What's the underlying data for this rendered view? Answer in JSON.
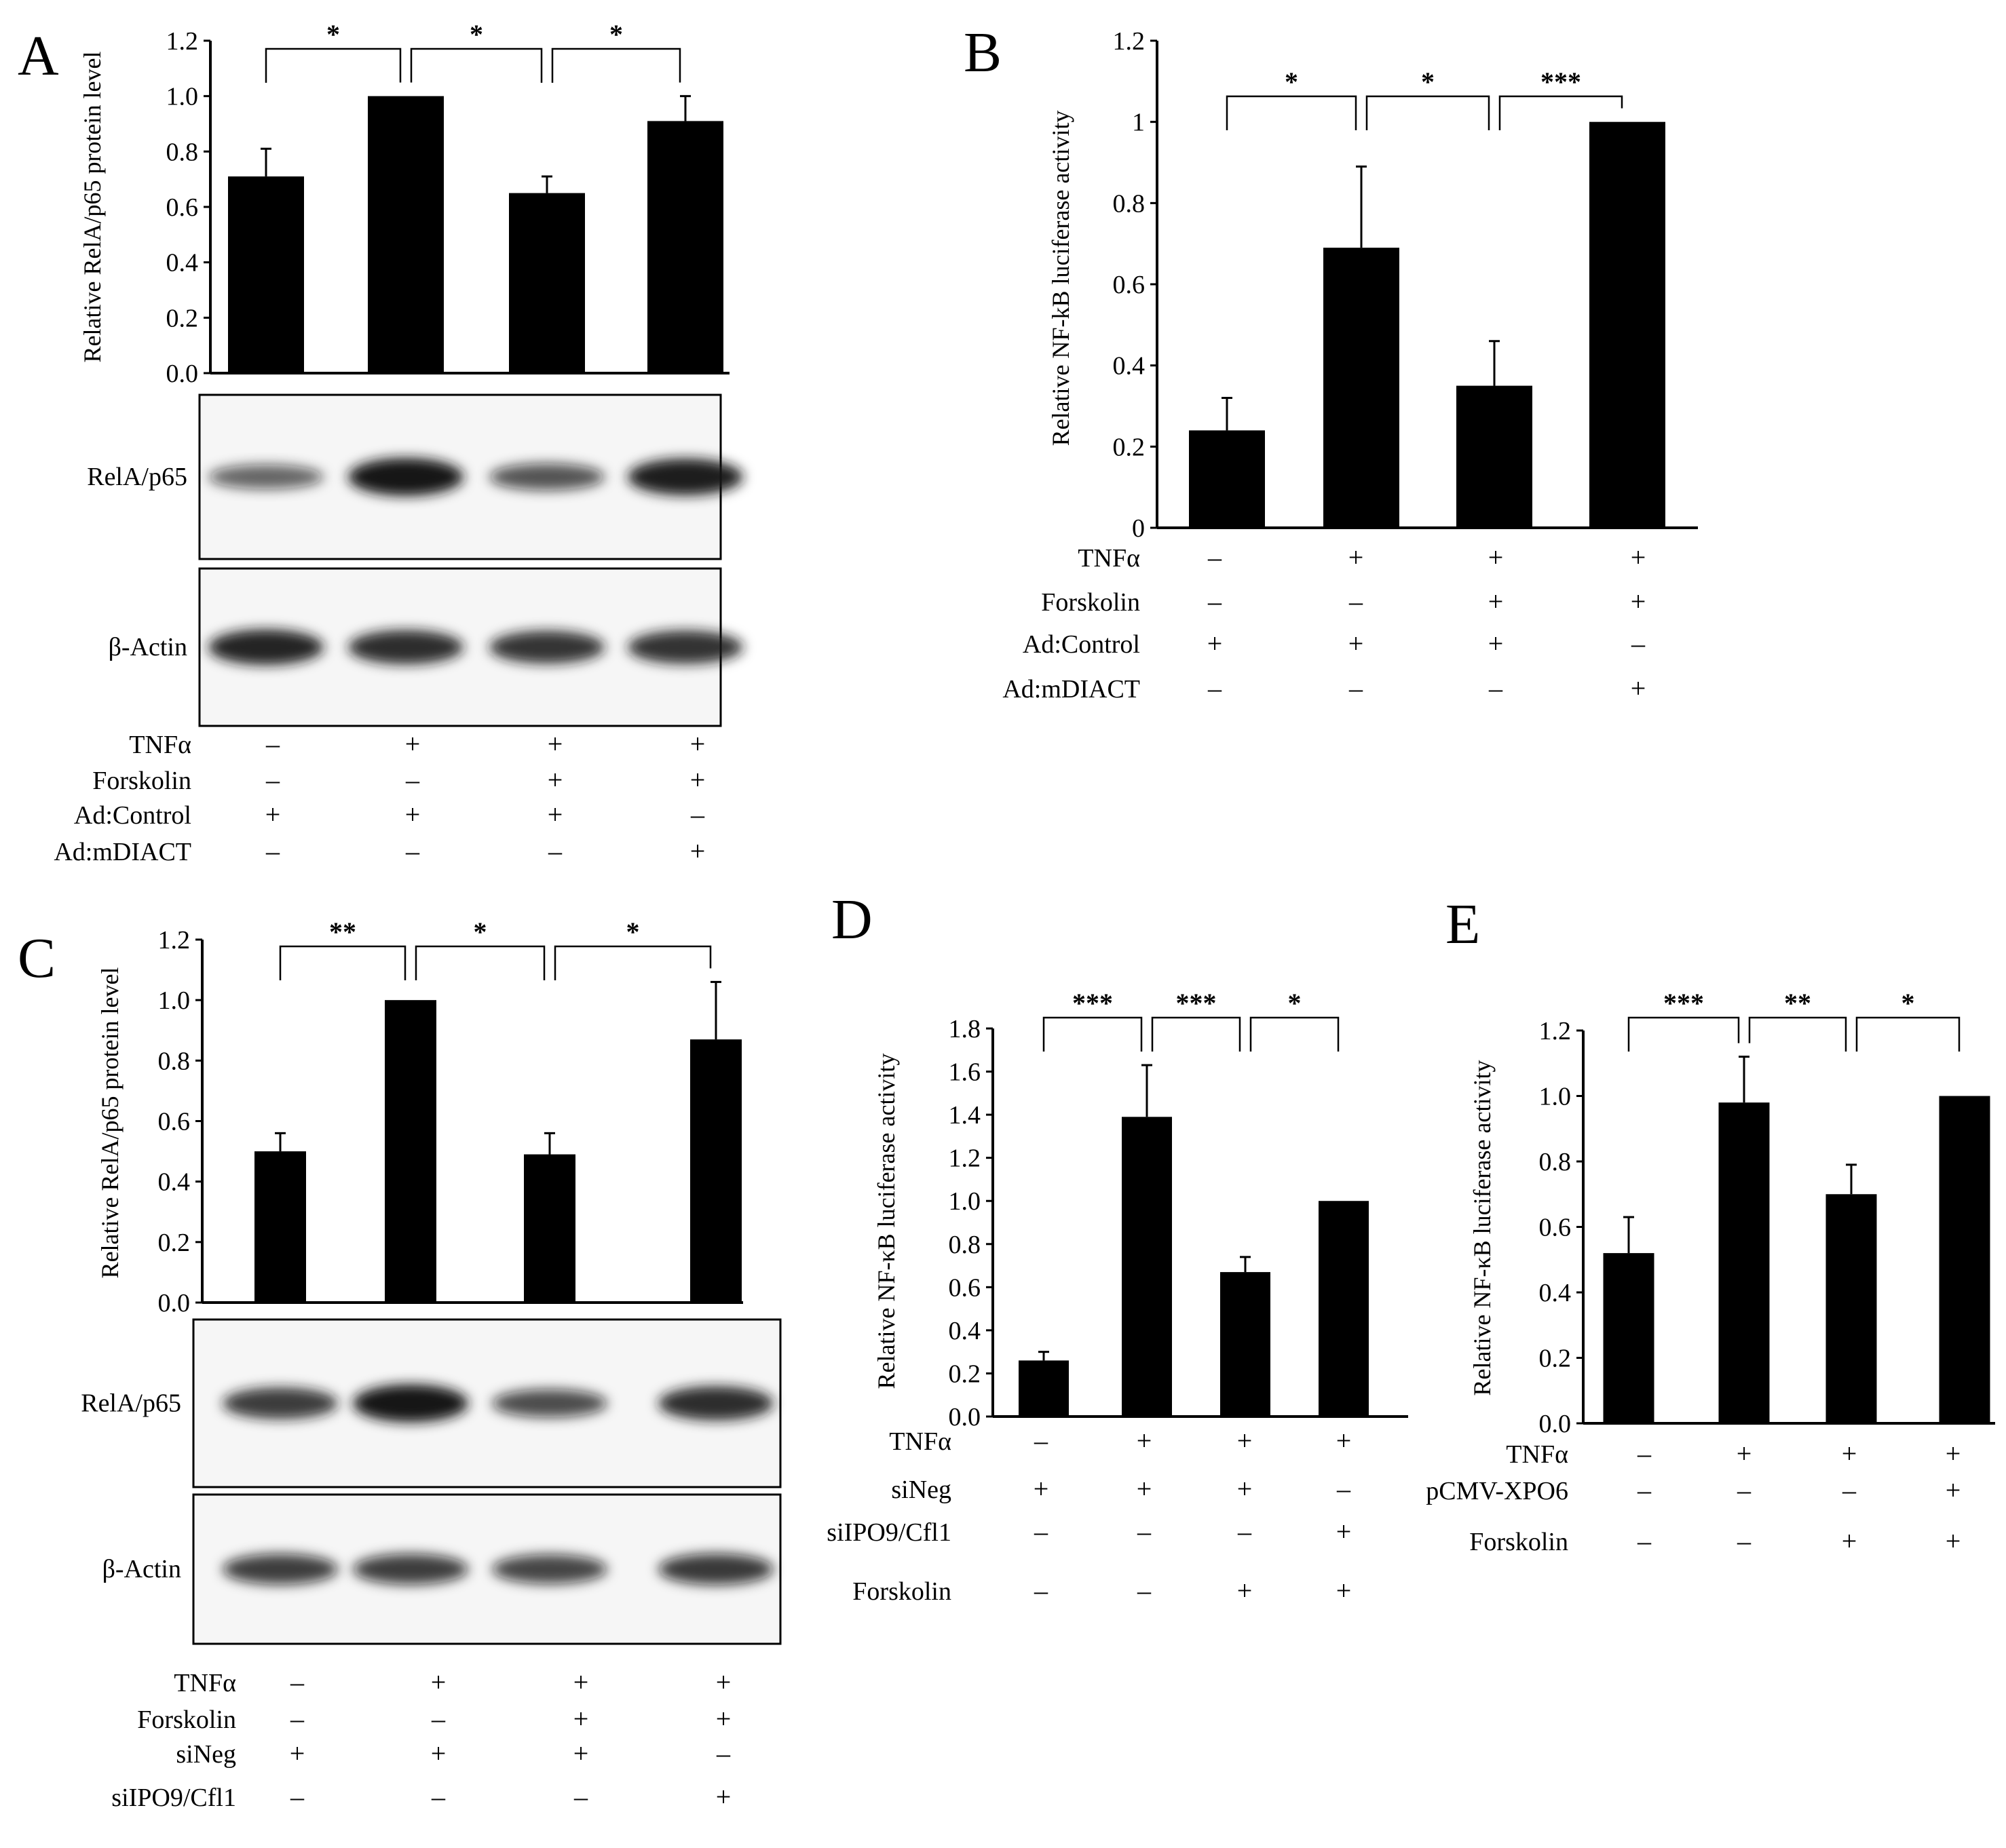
{
  "chart_data": [
    {
      "panel": "A",
      "type": "bar",
      "ylabel": "Relative RelA/p65 protein level",
      "ylim": [
        0,
        1.2
      ],
      "yticks": [
        "0.0",
        "0.2",
        "0.4",
        "0.6",
        "0.8",
        "1.0",
        "1.2"
      ],
      "categories": [
        "1",
        "2",
        "3",
        "4"
      ],
      "values": [
        0.71,
        1.0,
        0.65,
        0.91
      ],
      "errors": [
        0.1,
        0.0,
        0.06,
        0.09
      ],
      "significance": [
        {
          "from": 0,
          "to": 1,
          "label": "*"
        },
        {
          "from": 1,
          "to": 2,
          "label": "*"
        },
        {
          "from": 2,
          "to": 3,
          "label": "*"
        }
      ],
      "blots": [
        {
          "label": "RelA/p65",
          "intensity": [
            0.45,
            1.0,
            0.55,
            0.95
          ]
        },
        {
          "label": "β-Actin",
          "intensity": [
            0.9,
            0.85,
            0.8,
            0.82
          ]
        }
      ],
      "conditions": [
        {
          "label": "TNFα",
          "signs": [
            "–",
            "+",
            "+",
            "+"
          ]
        },
        {
          "label": "Forskolin",
          "signs": [
            "–",
            "–",
            "+",
            "+"
          ]
        },
        {
          "label": "Ad:Control",
          "signs": [
            "+",
            "+",
            "+",
            "–"
          ]
        },
        {
          "label": "Ad:mDIACT",
          "signs": [
            "–",
            "–",
            "–",
            "+"
          ]
        }
      ]
    },
    {
      "panel": "B",
      "type": "bar",
      "ylabel": "Relative NF-kB luciferase activity",
      "ylim": [
        0,
        1.2
      ],
      "yticks": [
        "0",
        "0.2",
        "0.4",
        "0.6",
        "0.8",
        "1",
        "1.2"
      ],
      "categories": [
        "1",
        "2",
        "3",
        "4"
      ],
      "values": [
        0.24,
        0.69,
        0.35,
        1.0
      ],
      "errors": [
        0.08,
        0.2,
        0.11,
        0.0
      ],
      "significance": [
        {
          "from": 0,
          "to": 1,
          "label": "*"
        },
        {
          "from": 1,
          "to": 2,
          "label": "*"
        },
        {
          "from": 2,
          "to": 3,
          "label": "***"
        }
      ],
      "conditions": [
        {
          "label": "TNFα",
          "signs": [
            "–",
            "+",
            "+",
            "+"
          ]
        },
        {
          "label": "Forskolin",
          "signs": [
            "–",
            "–",
            "+",
            "+"
          ]
        },
        {
          "label": "Ad:Control",
          "signs": [
            "+",
            "+",
            "+",
            "–"
          ]
        },
        {
          "label": "Ad:mDIACT",
          "signs": [
            "–",
            "–",
            "–",
            "+"
          ]
        }
      ]
    },
    {
      "panel": "C",
      "type": "bar",
      "ylabel": "Relative RelA/p65 protein level",
      "ylim": [
        0,
        1.2
      ],
      "yticks": [
        "0.0",
        "0.2",
        "0.4",
        "0.6",
        "0.8",
        "1.0",
        "1.2"
      ],
      "categories": [
        "1",
        "2",
        "3",
        "4"
      ],
      "values": [
        0.5,
        1.0,
        0.49,
        0.87
      ],
      "errors": [
        0.06,
        0.0,
        0.07,
        0.19
      ],
      "significance": [
        {
          "from": 0,
          "to": 1,
          "label": "**"
        },
        {
          "from": 1,
          "to": 2,
          "label": "*"
        },
        {
          "from": 2,
          "to": 3,
          "label": "*"
        }
      ],
      "blots": [
        {
          "label": "RelA/p65",
          "intensity": [
            0.75,
            1.0,
            0.6,
            0.85
          ]
        },
        {
          "label": "β-Actin",
          "intensity": [
            0.7,
            0.7,
            0.65,
            0.72
          ]
        }
      ],
      "conditions": [
        {
          "label": "TNFα",
          "signs": [
            "–",
            "+",
            "+",
            "+"
          ]
        },
        {
          "label": "Forskolin",
          "signs": [
            "–",
            "–",
            "+",
            "+"
          ]
        },
        {
          "label": "siNeg",
          "signs": [
            "+",
            "+",
            "+",
            "–"
          ]
        },
        {
          "label": "siIPO9/Cfl1",
          "signs": [
            "–",
            "–",
            "–",
            "+"
          ]
        }
      ]
    },
    {
      "panel": "D",
      "type": "bar",
      "ylabel": "Relative NF-κB luciferase activity",
      "ylim": [
        0,
        1.8
      ],
      "yticks": [
        "0.0",
        "0.2",
        "0.4",
        "0.6",
        "0.8",
        "1.0",
        "1.2",
        "1.4",
        "1.6",
        "1.8"
      ],
      "categories": [
        "1",
        "2",
        "3",
        "4"
      ],
      "values": [
        0.26,
        1.39,
        0.67,
        1.0
      ],
      "errors": [
        0.04,
        0.24,
        0.07,
        0.0
      ],
      "significance": [
        {
          "from": 0,
          "to": 1,
          "label": "***"
        },
        {
          "from": 1,
          "to": 2,
          "label": "***"
        },
        {
          "from": 2,
          "to": 3,
          "label": "*"
        }
      ],
      "conditions": [
        {
          "label": "TNFα",
          "signs": [
            "–",
            "+",
            "+",
            "+"
          ]
        },
        {
          "label": "siNeg",
          "signs": [
            "+",
            "+",
            "+",
            "–"
          ]
        },
        {
          "label": "siIPO9/Cfl1",
          "signs": [
            "–",
            "–",
            "–",
            "+"
          ]
        },
        {
          "label": "Forskolin",
          "signs": [
            "–",
            "–",
            "+",
            "+"
          ]
        }
      ]
    },
    {
      "panel": "E",
      "type": "bar",
      "ylabel": "Relative NF-κB luciferase activity",
      "ylim": [
        0,
        1.2
      ],
      "yticks": [
        "0.0",
        "0.2",
        "0.4",
        "0.6",
        "0.8",
        "1.0",
        "1.2"
      ],
      "categories": [
        "1",
        "2",
        "3",
        "4"
      ],
      "values": [
        0.52,
        0.98,
        0.7,
        1.0
      ],
      "errors": [
        0.11,
        0.14,
        0.09,
        0.0
      ],
      "significance": [
        {
          "from": 0,
          "to": 1,
          "label": "***"
        },
        {
          "from": 1,
          "to": 2,
          "label": "**"
        },
        {
          "from": 2,
          "to": 3,
          "label": "*"
        }
      ],
      "conditions": [
        {
          "label": "TNFα",
          "signs": [
            "–",
            "+",
            "+",
            "+"
          ]
        },
        {
          "label": "pCMV-XPO6",
          "signs": [
            "–",
            "–",
            "–",
            "+"
          ]
        },
        {
          "label": "Forskolin",
          "signs": [
            "–",
            "–",
            "+",
            "+"
          ]
        }
      ]
    }
  ]
}
